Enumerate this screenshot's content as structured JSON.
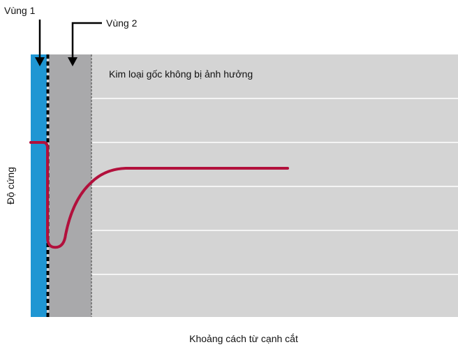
{
  "labels": {
    "zone1": "Vùng 1",
    "zone2": "Vùng 2",
    "base_metal": "Kim loại gốc không bị ảnh hưởng",
    "y_axis": "Độ cứng",
    "x_axis": "Khoảng cách từ cạnh cắt"
  },
  "colors": {
    "background": "#d4d4d4",
    "zone1": "#1f96d3",
    "zone2": "#a9a9ab",
    "curve": "#b2103c",
    "gridline": "#ffffff",
    "boundary_dashed": "#000000"
  },
  "legend_zones": [
    {
      "name": "Vùng 1",
      "color": "#1f96d3"
    },
    {
      "name": "Vùng 2",
      "color": "#a9a9ab"
    }
  ],
  "curve_description_points": [
    {
      "label": "edge-high",
      "relative_hardness": "high"
    },
    {
      "label": "minimum",
      "relative_hardness": "low"
    },
    {
      "label": "base-metal",
      "relative_hardness": "medium-high"
    }
  ]
}
